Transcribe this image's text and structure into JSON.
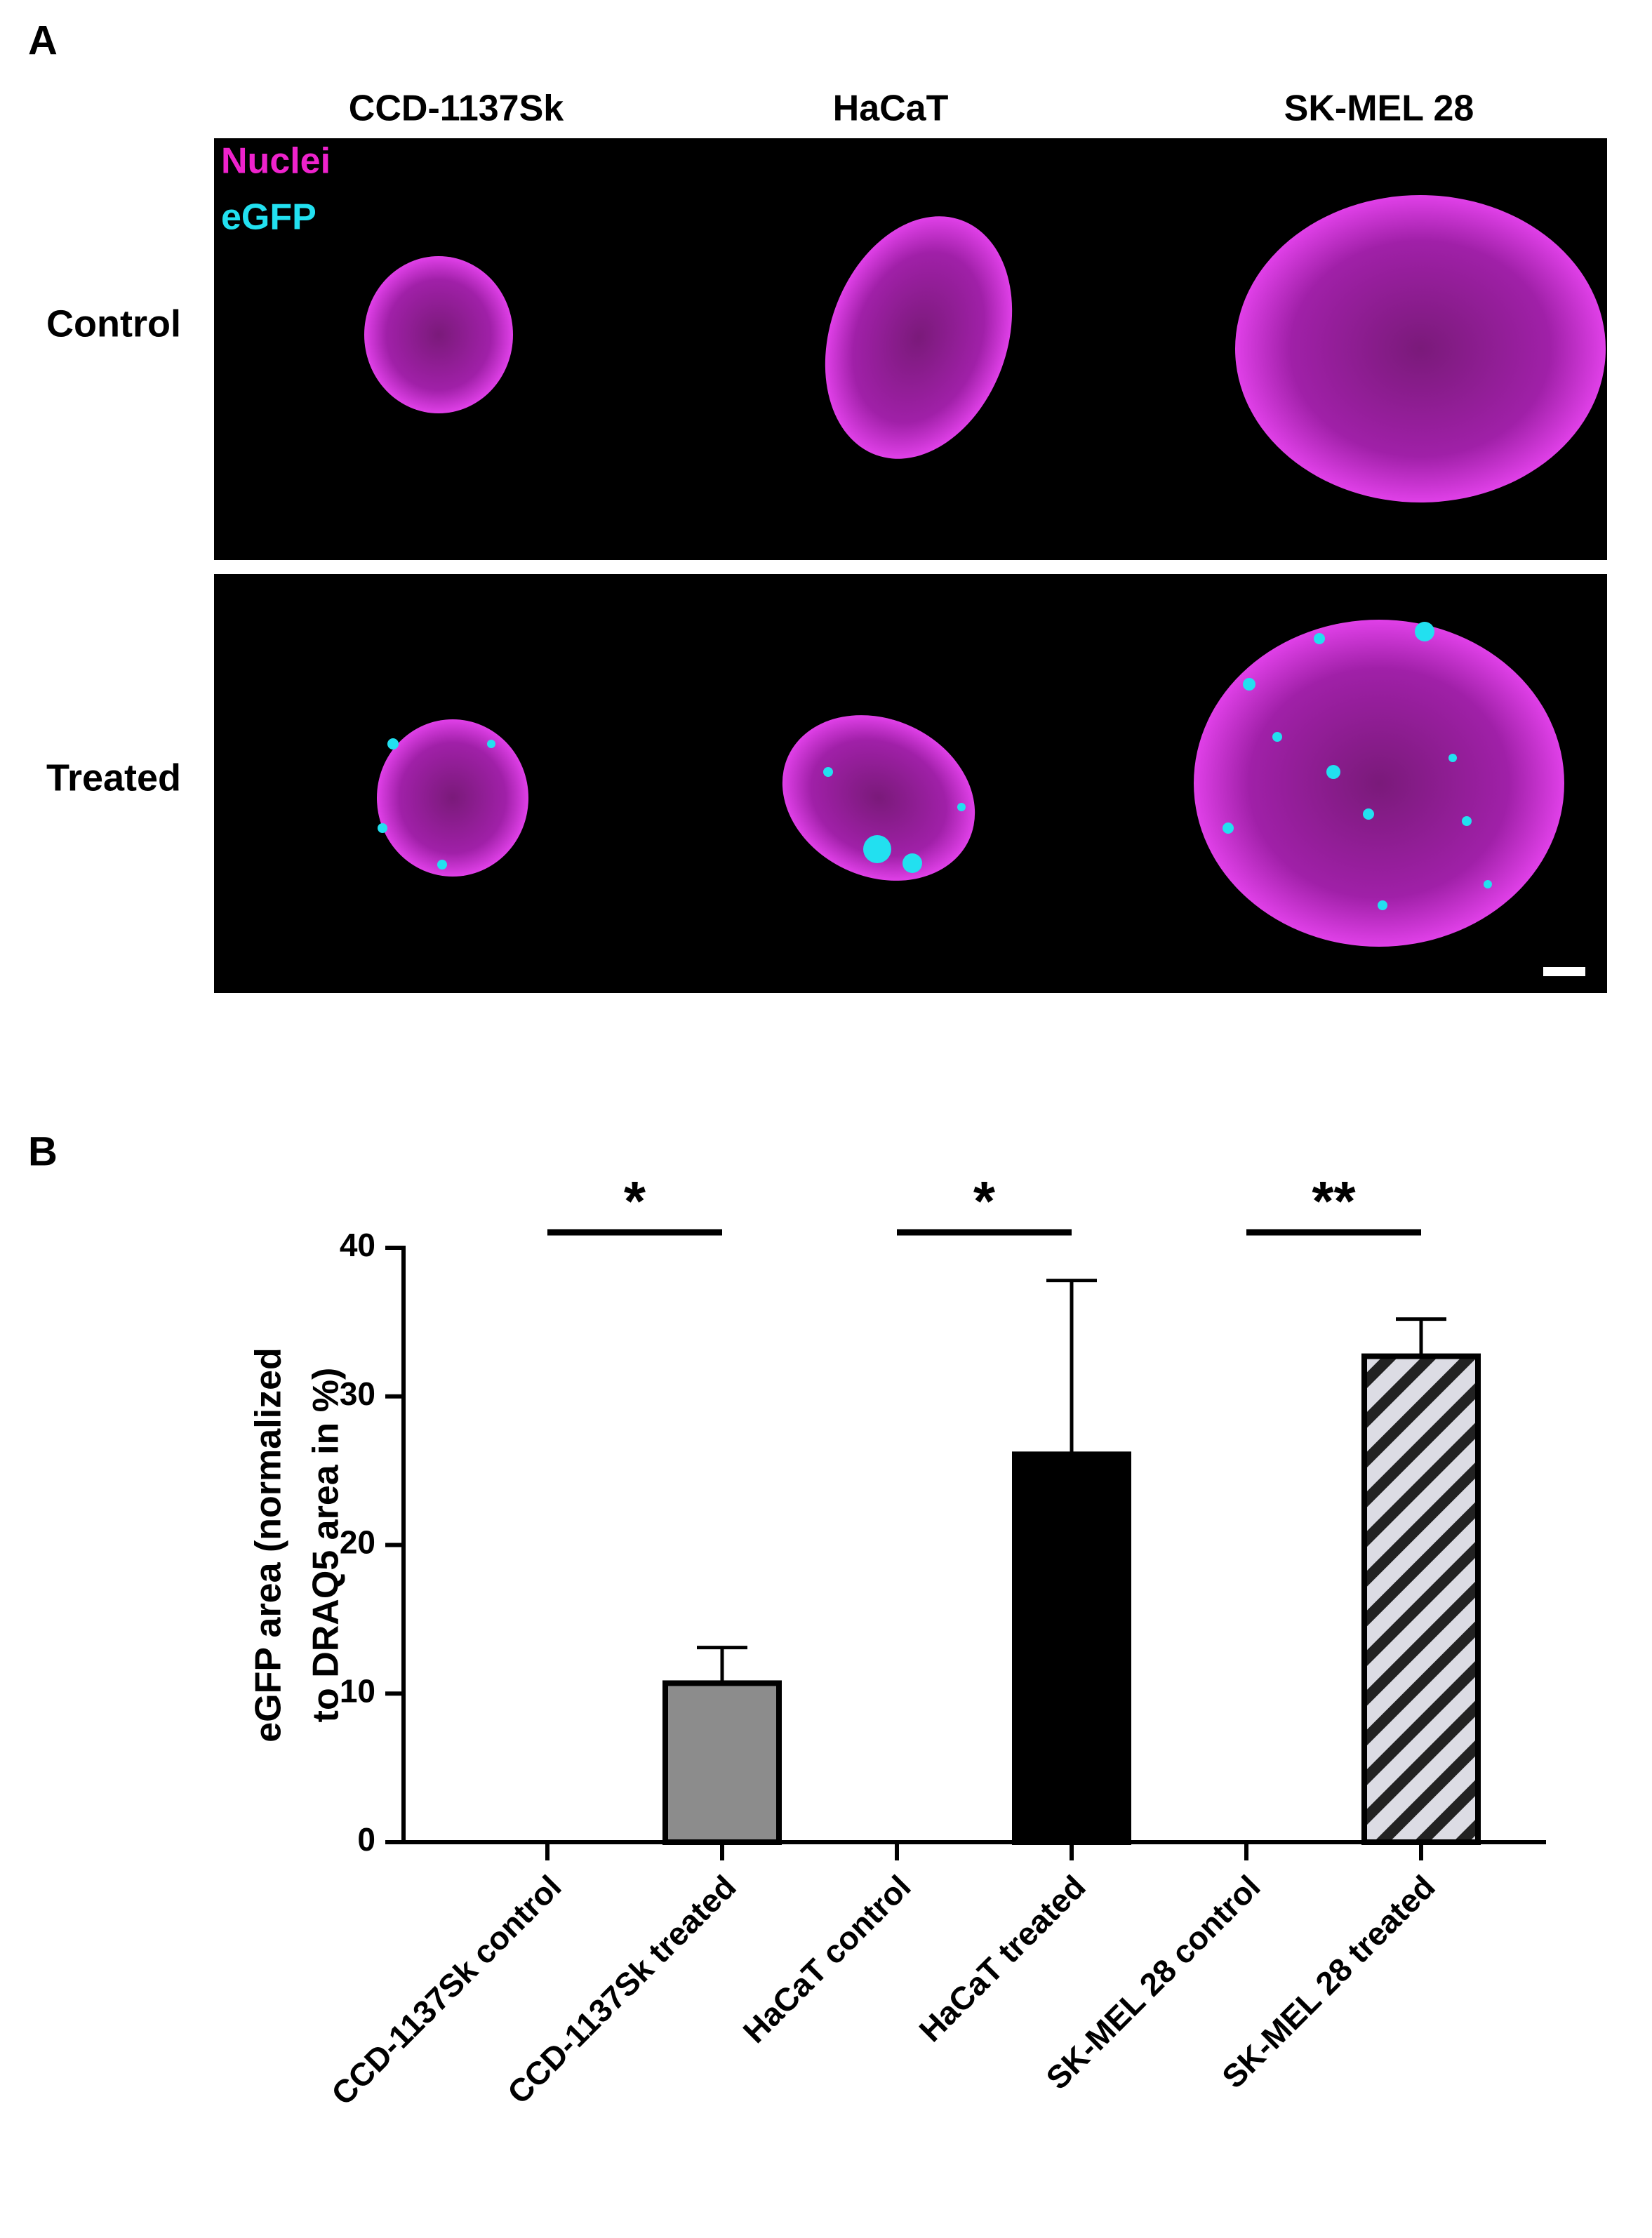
{
  "panel_a": {
    "label": "A",
    "columns": [
      "CCD-1137Sk",
      "HaCaT",
      "SK-MEL 28"
    ],
    "rows": [
      "Control",
      "Treated"
    ],
    "legend": [
      "Nuclei",
      "eGFP"
    ]
  },
  "panel_b": {
    "label": "B"
  },
  "chart_data": {
    "type": "bar",
    "categories": [
      "CCD-1137Sk control",
      "CCD-1137Sk treated",
      "HaCaT control",
      "HaCaT treated",
      "SK-MEL 28 control",
      "SK-MEL 28 treated"
    ],
    "values": [
      0,
      10.7,
      0,
      26.1,
      0,
      32.7
    ],
    "errors": [
      null,
      2.4,
      null,
      11.7,
      null,
      2.5
    ],
    "colors": [
      null,
      "#8c8c8c",
      null,
      "#000000",
      null,
      "#dcdce4"
    ],
    "hatch": [
      false,
      false,
      false,
      false,
      false,
      true
    ],
    "ylabel": [
      "eGFP area (normalized",
      "to DRAQ5 area in %)"
    ],
    "ylim": [
      0,
      40
    ],
    "yticks": [
      0,
      10,
      20,
      30,
      40
    ],
    "annotations": [
      {
        "text": "*",
        "from": 0,
        "to": 1
      },
      {
        "text": "*",
        "from": 2,
        "to": 3
      },
      {
        "text": "**",
        "from": 4,
        "to": 5
      }
    ]
  }
}
